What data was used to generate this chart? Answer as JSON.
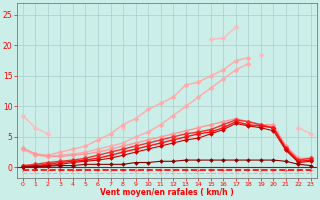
{
  "xlabel": "Vent moyen/en rafales ( km/h )",
  "bg_color": "#cceee8",
  "grid_color": "#aacccc",
  "xticks": [
    0,
    1,
    2,
    3,
    4,
    5,
    6,
    7,
    8,
    9,
    10,
    11,
    12,
    13,
    14,
    15,
    16,
    17,
    18,
    19,
    20,
    21,
    22,
    23
  ],
  "yticks": [
    0,
    5,
    10,
    15,
    20,
    25
  ],
  "ylim": [
    -1.8,
    27
  ],
  "xlim": [
    -0.5,
    23.5
  ],
  "series": [
    {
      "color": "#ffbbbb",
      "marker": "D",
      "markersize": 2.5,
      "linewidth": 1.0,
      "y": [
        8.5,
        6.5,
        5.5,
        null,
        null,
        null,
        null,
        null,
        6.5,
        null,
        null,
        null,
        null,
        13.5,
        null,
        21.0,
        21.2,
        23.0,
        null,
        18.5,
        null,
        null,
        6.5,
        5.5
      ]
    },
    {
      "color": "#ffaaaa",
      "marker": "D",
      "markersize": 2.5,
      "linewidth": 1.0,
      "y": [
        3.0,
        2.2,
        2.0,
        2.5,
        3.0,
        3.5,
        4.5,
        5.5,
        7.0,
        8.0,
        9.5,
        10.5,
        11.5,
        13.5,
        14.0,
        15.0,
        16.0,
        17.5,
        18.0,
        null,
        null,
        null,
        null,
        null
      ]
    },
    {
      "color": "#ffaaaa",
      "marker": "D",
      "markersize": 2.5,
      "linewidth": 1.0,
      "y": [
        3.0,
        2.0,
        1.8,
        2.0,
        2.2,
        2.5,
        3.0,
        3.5,
        4.0,
        5.0,
        5.8,
        7.0,
        8.5,
        10.0,
        11.5,
        13.0,
        14.5,
        16.0,
        17.0,
        null,
        null,
        null,
        null,
        null
      ]
    },
    {
      "color": "#ff9999",
      "marker": "D",
      "markersize": 2.5,
      "linewidth": 1.0,
      "y": [
        3.2,
        2.2,
        1.8,
        1.8,
        2.0,
        2.2,
        2.5,
        3.0,
        3.5,
        4.0,
        4.5,
        5.0,
        5.5,
        6.0,
        6.5,
        7.0,
        7.5,
        8.0,
        7.5,
        7.0,
        7.0,
        3.5,
        1.5,
        1.5
      ]
    },
    {
      "color": "#ee3333",
      "marker": "D",
      "markersize": 2.5,
      "linewidth": 1.0,
      "y": [
        0.3,
        0.5,
        0.8,
        1.0,
        1.2,
        1.5,
        2.0,
        2.5,
        3.0,
        3.5,
        4.0,
        4.5,
        5.0,
        5.5,
        5.8,
        6.2,
        7.0,
        7.8,
        7.5,
        7.0,
        6.5,
        3.2,
        1.2,
        1.5
      ]
    },
    {
      "color": "#ff1111",
      "marker": "D",
      "markersize": 2.5,
      "linewidth": 1.0,
      "y": [
        0.2,
        0.3,
        0.5,
        0.8,
        1.0,
        1.2,
        1.5,
        2.0,
        2.5,
        3.0,
        3.5,
        4.0,
        4.5,
        5.0,
        5.5,
        5.8,
        6.5,
        7.5,
        7.0,
        6.8,
        6.5,
        3.0,
        1.0,
        1.2
      ]
    },
    {
      "color": "#cc0000",
      "marker": "D",
      "markersize": 2.0,
      "linewidth": 0.8,
      "y": [
        0.1,
        0.2,
        0.3,
        0.5,
        0.8,
        1.0,
        1.2,
        1.5,
        2.0,
        2.5,
        3.0,
        3.5,
        4.0,
        4.5,
        4.8,
        5.5,
        6.2,
        7.2,
        6.8,
        6.5,
        6.0,
        2.8,
        0.8,
        1.0
      ]
    },
    {
      "color": "#880000",
      "marker": "D",
      "markersize": 2.0,
      "linewidth": 0.8,
      "y": [
        0.0,
        0.1,
        0.2,
        0.3,
        0.3,
        0.5,
        0.5,
        0.5,
        0.5,
        0.8,
        0.8,
        1.0,
        1.0,
        1.2,
        1.2,
        1.2,
        1.2,
        1.2,
        1.2,
        1.2,
        1.2,
        1.0,
        0.5,
        0.3
      ]
    },
    {
      "color": "#ff0000",
      "marker": "4",
      "markersize": 3,
      "linewidth": 1.2,
      "linestyle": "--",
      "y": [
        -0.5,
        -0.5,
        -0.5,
        -0.5,
        -0.5,
        -0.5,
        -0.5,
        -0.5,
        -0.5,
        -0.5,
        -0.5,
        -0.5,
        -0.5,
        -0.5,
        -0.5,
        -0.5,
        -0.5,
        -0.5,
        -0.5,
        -0.5,
        -0.5,
        -0.5,
        -0.5,
        -0.5
      ]
    },
    {
      "color": "#ffaaaa",
      "marker": "4",
      "markersize": 3,
      "linewidth": 0.8,
      "linestyle": "--",
      "y": [
        -0.9,
        -0.9,
        -0.9,
        -0.9,
        -0.9,
        -0.9,
        -0.9,
        -0.9,
        -0.9,
        -0.9,
        -0.9,
        -0.9,
        -0.9,
        -0.9,
        -0.9,
        -0.9,
        -0.9,
        -0.9,
        -0.9,
        -0.9,
        -0.9,
        -0.9,
        -0.9,
        -0.9
      ]
    }
  ]
}
